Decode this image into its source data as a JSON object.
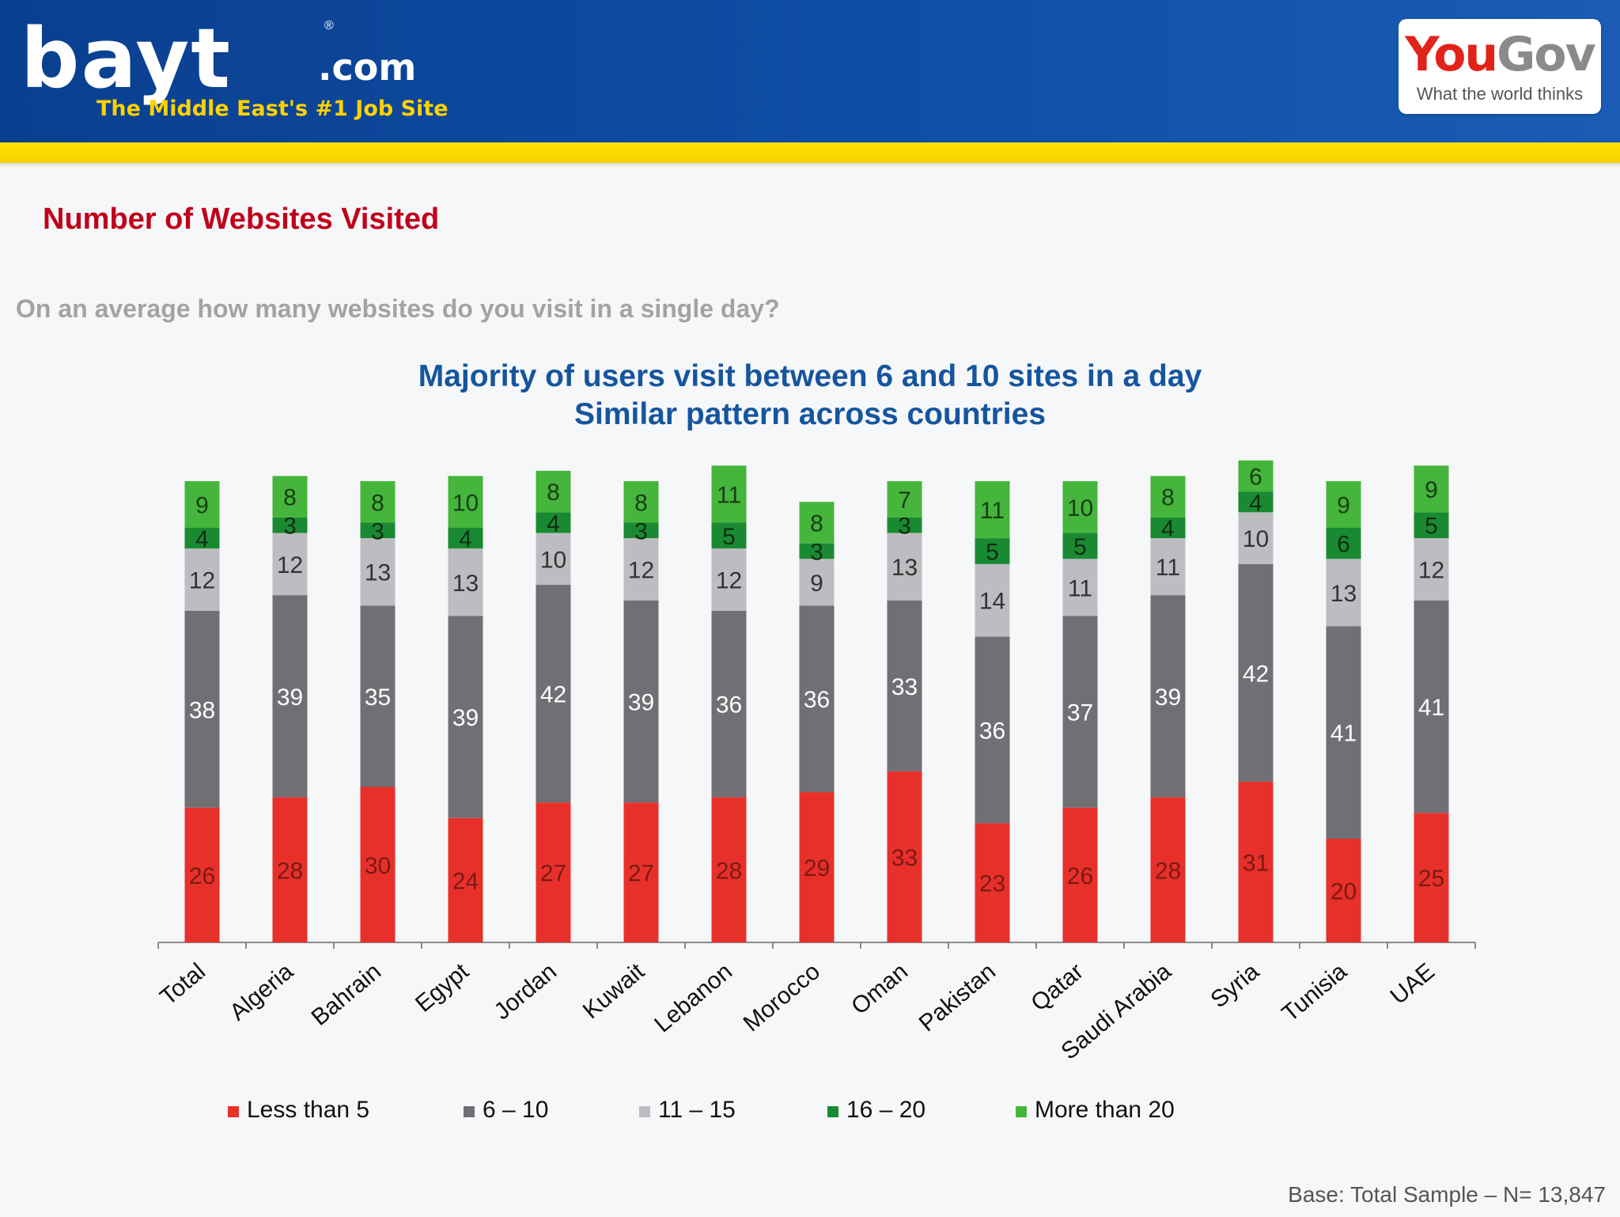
{
  "header": {
    "brand_name": "bayt",
    "brand_domain": ".com",
    "brand_registered": "®",
    "tagline": "The Middle East's #1 Job Site",
    "partner_you": "You",
    "partner_gov": "Gov",
    "partner_tagline": "What the world thinks",
    "colors": {
      "banner": "#0e4ea6",
      "stripe": "#ffe200",
      "tagline": "#ffd200"
    }
  },
  "slide": {
    "title": "Number of Websites Visited",
    "question": "On an average how many websites do you visit in a single day?",
    "headline_1": "Majority of users visit between 6 and 10 sites in a day",
    "headline_2": "Similar pattern across countries",
    "footnote": "Base: Total Sample – N= 13,847"
  },
  "chart_data": {
    "type": "bar",
    "stacked": true,
    "unit": "%",
    "categories": [
      "Total",
      "Algeria",
      "Bahrain",
      "Egypt",
      "Jordan",
      "Kuwait",
      "Lebanon",
      "Morocco",
      "Oman",
      "Pakistan",
      "Qatar",
      "Saudi Arabia",
      "Syria",
      "Tunisia",
      "UAE"
    ],
    "series": [
      {
        "name": "Less than 5",
        "color": "#e8302a",
        "label_color": "#7a1a14",
        "values": [
          26,
          28,
          30,
          24,
          27,
          27,
          28,
          29,
          33,
          23,
          26,
          28,
          31,
          20,
          25
        ]
      },
      {
        "name": "6 – 10",
        "color": "#706f74",
        "label_color": "#ffffff",
        "values": [
          38,
          39,
          35,
          39,
          42,
          39,
          36,
          36,
          33,
          36,
          37,
          39,
          42,
          41,
          41
        ]
      },
      {
        "name": "11 – 15",
        "color": "#bdbdc1",
        "label_color": "#333333",
        "values": [
          12,
          12,
          13,
          13,
          10,
          12,
          12,
          9,
          13,
          14,
          11,
          11,
          10,
          13,
          12
        ]
      },
      {
        "name": "16 – 20",
        "color": "#1a8a32",
        "label_color": "#0c2e12",
        "values": [
          4,
          3,
          3,
          4,
          4,
          3,
          5,
          3,
          3,
          5,
          5,
          4,
          4,
          6,
          5
        ]
      },
      {
        "name": "More than 20",
        "color": "#45b53c",
        "label_color": "#173f14",
        "values": [
          9,
          8,
          8,
          10,
          8,
          8,
          11,
          8,
          7,
          11,
          10,
          8,
          6,
          9,
          9
        ]
      }
    ],
    "legend_position": "bottom",
    "grid": false
  }
}
